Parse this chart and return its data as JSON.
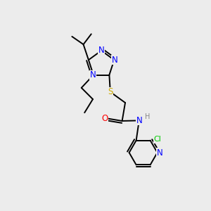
{
  "bg_color": "#ececec",
  "bond_color": "#000000",
  "atom_colors": {
    "N": "#0000ff",
    "S": "#ccaa00",
    "O": "#ff0000",
    "Cl": "#00cc00",
    "H": "#888888",
    "C": "#000000"
  },
  "bond_width": 1.4,
  "font_size": 8.5
}
